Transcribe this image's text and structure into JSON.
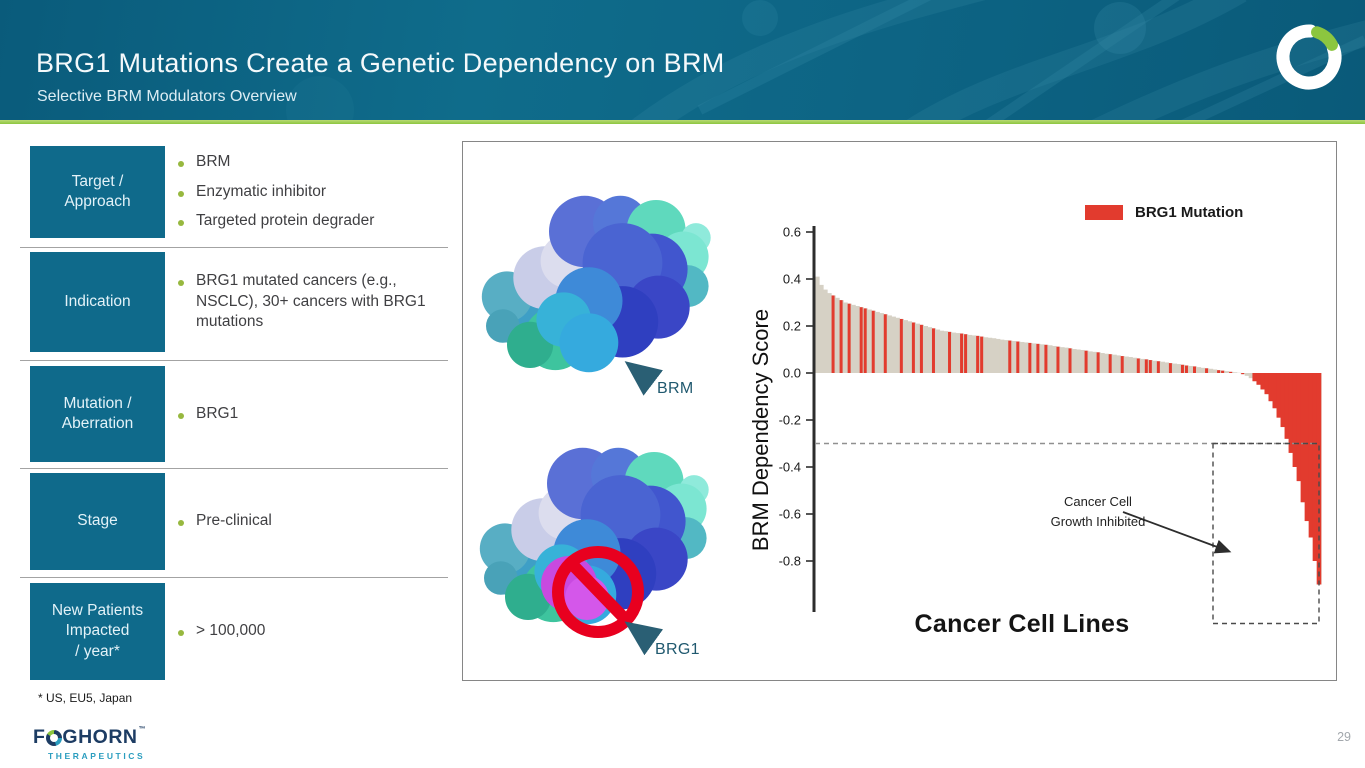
{
  "header": {
    "title": "BRG1 Mutations Create a Genetic Dependency on BRM",
    "subtitle": "Selective BRM Modulators Overview"
  },
  "table": {
    "rows": [
      {
        "label": "Target  /\nApproach",
        "bullets": [
          "BRM",
          "Enzymatic inhibitor",
          "Targeted protein degrader"
        ]
      },
      {
        "label": "Indication",
        "bullets": [
          "BRG1 mutated cancers (e.g., NSCLC), 30+ cancers with BRG1 mutations"
        ]
      },
      {
        "label": "Mutation  /\nAberration",
        "bullets": [
          "BRG1"
        ]
      },
      {
        "label": "Stage",
        "bullets": [
          "Pre-clinical"
        ]
      },
      {
        "label": "New Patients\nImpacted\n/ year*",
        "bullets": [
          "> 100,000"
        ]
      }
    ]
  },
  "figure": {
    "brm_label": "BRM",
    "brg1_label": "BRG1"
  },
  "chart_data": {
    "type": "bar",
    "title": "",
    "xlabel": "Cancer Cell Lines",
    "ylabel": "BRM Dependency Score",
    "ylim": [
      -0.95,
      0.6
    ],
    "yticks": [
      0.6,
      0.4,
      0.2,
      0.0,
      -0.2,
      -0.4,
      -0.6,
      -0.8
    ],
    "grid": false,
    "legend_position": "top-right",
    "legend": [
      {
        "label": "BRG1 Mutation",
        "color": "#e23b2e"
      }
    ],
    "annotation": "Cancer Cell\nGrowth Inhibited",
    "threshold_line": -0.3,
    "colors": {
      "bar": "#d6d1c5",
      "mutation": "#e23b2e"
    },
    "bars": [
      [
        0.41,
        0
      ],
      [
        0.375,
        0
      ],
      [
        0.355,
        0
      ],
      [
        0.34,
        0
      ],
      [
        0.33,
        1
      ],
      [
        0.32,
        0
      ],
      [
        0.31,
        1
      ],
      [
        0.3,
        0
      ],
      [
        0.295,
        1
      ],
      [
        0.29,
        0
      ],
      [
        0.285,
        0
      ],
      [
        0.28,
        1
      ],
      [
        0.275,
        1
      ],
      [
        0.27,
        0
      ],
      [
        0.265,
        1
      ],
      [
        0.26,
        0
      ],
      [
        0.255,
        0
      ],
      [
        0.25,
        1
      ],
      [
        0.245,
        0
      ],
      [
        0.24,
        0
      ],
      [
        0.235,
        0
      ],
      [
        0.23,
        1
      ],
      [
        0.225,
        0
      ],
      [
        0.22,
        0
      ],
      [
        0.215,
        1
      ],
      [
        0.21,
        0
      ],
      [
        0.205,
        1
      ],
      [
        0.2,
        0
      ],
      [
        0.195,
        0
      ],
      [
        0.19,
        1
      ],
      [
        0.185,
        0
      ],
      [
        0.18,
        0
      ],
      [
        0.178,
        0
      ],
      [
        0.175,
        1
      ],
      [
        0.172,
        0
      ],
      [
        0.17,
        0
      ],
      [
        0.168,
        1
      ],
      [
        0.165,
        1
      ],
      [
        0.162,
        0
      ],
      [
        0.16,
        0
      ],
      [
        0.158,
        1
      ],
      [
        0.155,
        1
      ],
      [
        0.152,
        0
      ],
      [
        0.15,
        0
      ],
      [
        0.148,
        0
      ],
      [
        0.145,
        0
      ],
      [
        0.142,
        0
      ],
      [
        0.14,
        0
      ],
      [
        0.138,
        1
      ],
      [
        0.136,
        0
      ],
      [
        0.134,
        1
      ],
      [
        0.132,
        0
      ],
      [
        0.13,
        0
      ],
      [
        0.128,
        1
      ],
      [
        0.126,
        0
      ],
      [
        0.124,
        1
      ],
      [
        0.122,
        0
      ],
      [
        0.12,
        1
      ],
      [
        0.118,
        0
      ],
      [
        0.115,
        0
      ],
      [
        0.112,
        1
      ],
      [
        0.11,
        0
      ],
      [
        0.108,
        0
      ],
      [
        0.105,
        1
      ],
      [
        0.102,
        0
      ],
      [
        0.1,
        0
      ],
      [
        0.098,
        0
      ],
      [
        0.095,
        1
      ],
      [
        0.092,
        0
      ],
      [
        0.09,
        0
      ],
      [
        0.088,
        1
      ],
      [
        0.085,
        0
      ],
      [
        0.082,
        0
      ],
      [
        0.08,
        1
      ],
      [
        0.078,
        0
      ],
      [
        0.075,
        0
      ],
      [
        0.072,
        1
      ],
      [
        0.07,
        0
      ],
      [
        0.068,
        0
      ],
      [
        0.065,
        0
      ],
      [
        0.062,
        1
      ],
      [
        0.06,
        0
      ],
      [
        0.058,
        1
      ],
      [
        0.055,
        1
      ],
      [
        0.052,
        0
      ],
      [
        0.05,
        1
      ],
      [
        0.048,
        0
      ],
      [
        0.045,
        0
      ],
      [
        0.042,
        1
      ],
      [
        0.04,
        0
      ],
      [
        0.038,
        0
      ],
      [
        0.035,
        1
      ],
      [
        0.032,
        1
      ],
      [
        0.03,
        0
      ],
      [
        0.028,
        1
      ],
      [
        0.025,
        0
      ],
      [
        0.022,
        0
      ],
      [
        0.02,
        1
      ],
      [
        0.018,
        0
      ],
      [
        0.015,
        0
      ],
      [
        0.012,
        1
      ],
      [
        0.01,
        1
      ],
      [
        0.008,
        0
      ],
      [
        0.005,
        1
      ],
      [
        0.003,
        0
      ],
      [
        0.001,
        0
      ],
      [
        -0.005,
        1
      ],
      [
        -0.012,
        0
      ],
      [
        -0.022,
        0
      ],
      [
        -0.035,
        1
      ],
      [
        -0.05,
        1
      ],
      [
        -0.07,
        1
      ],
      [
        -0.09,
        1
      ],
      [
        -0.12,
        1
      ],
      [
        -0.15,
        1
      ],
      [
        -0.19,
        1
      ],
      [
        -0.23,
        1
      ],
      [
        -0.28,
        1
      ],
      [
        -0.34,
        1
      ],
      [
        -0.4,
        1
      ],
      [
        -0.46,
        1
      ],
      [
        -0.55,
        1
      ],
      [
        -0.63,
        1
      ],
      [
        -0.7,
        1
      ],
      [
        -0.8,
        1
      ],
      [
        -0.9,
        1
      ]
    ]
  },
  "footnote": "* US, EU5, Japan",
  "brand": {
    "wordmark_prefix": "F",
    "wordmark_suffix": "GHORN",
    "trademark": "™",
    "division": "THERAPEUTICS"
  },
  "page_number": "29"
}
